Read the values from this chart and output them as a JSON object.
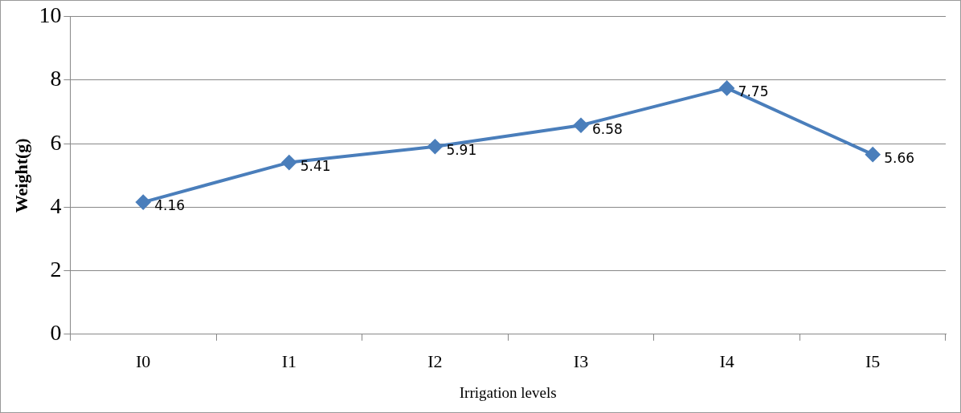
{
  "chart_data": {
    "type": "line",
    "xlabel": "Irrigation levels",
    "ylabel": "Weight(g)",
    "categories": [
      "I0",
      "I1",
      "I2",
      "I3",
      "I4",
      "I5"
    ],
    "series": [
      {
        "color": "#4a7ebb",
        "values": [
          4.16,
          5.41,
          5.91,
          6.58,
          7.75,
          5.66
        ]
      }
    ],
    "ylim": [
      0,
      10
    ],
    "yticks": [
      0,
      2,
      4,
      6,
      8,
      10
    ],
    "grid": "y",
    "legend": false,
    "marker": "diamond",
    "line_style": "solid",
    "data_labels": true
  }
}
